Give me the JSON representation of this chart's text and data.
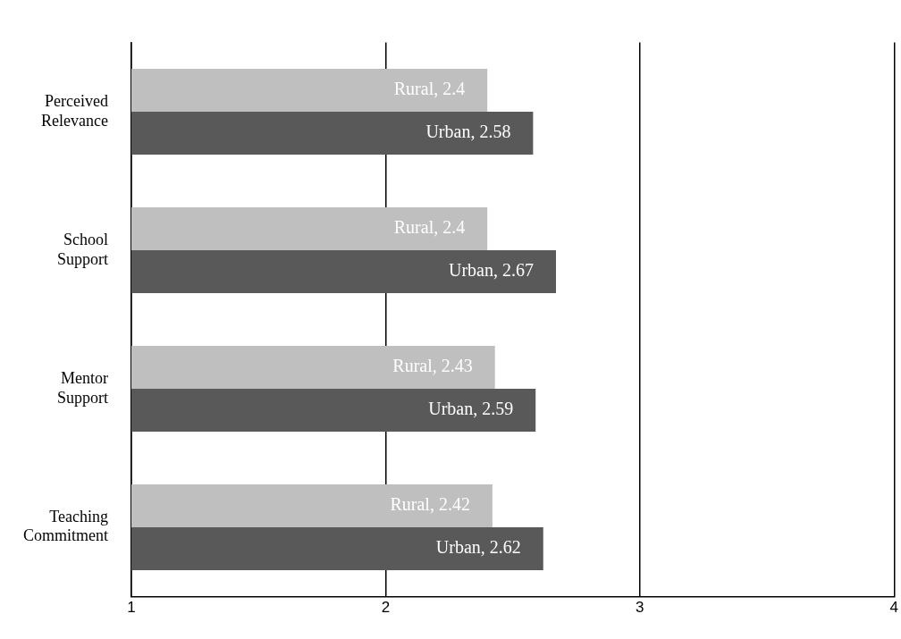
{
  "chart_data": {
    "type": "bar",
    "orientation": "horizontal",
    "categories": [
      "Perceived Relevance",
      "School Support",
      "Mentor Support",
      "Teaching Commitment"
    ],
    "series": [
      {
        "color": "#bfbfbf",
        "values": [
          2.4,
          2.4,
          2.43,
          2.42
        ],
        "value_labels": [
          "Rural, 2.4",
          "Rural, 2.4",
          "Rural, 2.43",
          "Rural, 2.42"
        ]
      },
      {
        "color": "#595959",
        "values": [
          2.58,
          2.67,
          2.59,
          2.62
        ],
        "value_labels": [
          "Urban, 2.58",
          "Urban, 2.67",
          "Urban, 2.59",
          "Urban, 2.62"
        ]
      }
    ],
    "xlim": [
      1,
      4
    ],
    "xticks": [
      1,
      2,
      3,
      4
    ],
    "grid": "x",
    "legend": false
  }
}
